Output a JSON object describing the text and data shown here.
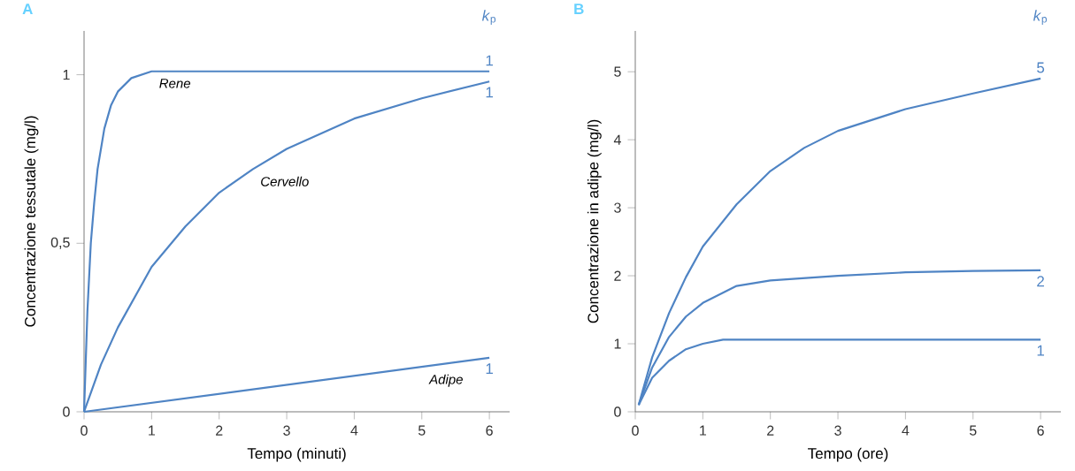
{
  "chart_data": [
    {
      "type": "line",
      "title": "A",
      "xlabel": "Tempo (minuti)",
      "ylabel": "Concentrazione tessutale (mg/l)",
      "legend_title": "*k*$_{p}$",
      "xlim": [
        0,
        6.3
      ],
      "ylim": [
        0,
        1.13
      ],
      "xticks": [
        0,
        1,
        2,
        3,
        4,
        5,
        6
      ],
      "yticks": [
        0,
        {
          "value": 0.5,
          "label": "0,5"
        },
        1
      ],
      "annotations": [
        {
          "text": "Rene",
          "x": 1.0,
          "y": 1.01
        },
        {
          "text": "Cervello",
          "x": 2.5,
          "y": 0.72
        },
        {
          "text": "Adipe",
          "x": 5.0,
          "y": 0.133
        }
      ],
      "series": [
        {
          "name": "1",
          "color": "#4f84c4",
          "x": [
            0,
            0.05,
            0.1,
            0.15,
            0.2,
            0.3,
            0.4,
            0.5,
            0.7,
            1,
            1.5,
            6
          ],
          "values": [
            0,
            0.3,
            0.5,
            0.62,
            0.72,
            0.84,
            0.91,
            0.95,
            0.99,
            1.01,
            1.01,
            1.01
          ]
        },
        {
          "name": "1",
          "color": "#4f84c4",
          "x": [
            0,
            0.25,
            0.5,
            1,
            1.5,
            2,
            2.5,
            3,
            4,
            5,
            6
          ],
          "values": [
            0,
            0.14,
            0.25,
            0.43,
            0.55,
            0.65,
            0.72,
            0.78,
            0.87,
            0.93,
            0.98
          ]
        },
        {
          "name": "1",
          "color": "#4f84c4",
          "x": [
            0,
            6
          ],
          "values": [
            0,
            0.16
          ]
        }
      ]
    },
    {
      "type": "line",
      "title": "B",
      "xlabel": "Tempo (ore)",
      "ylabel": "Concentrazione in adipe (mg/l)",
      "legend_title": "*k*$_{p}$",
      "xlim": [
        0,
        6.3
      ],
      "ylim": [
        0,
        5.6
      ],
      "xticks": [
        0,
        1,
        2,
        3,
        4,
        5,
        6
      ],
      "yticks": [
        0,
        1,
        2,
        3,
        4,
        5
      ],
      "series": [
        {
          "name": "5",
          "color": "#4f84c4",
          "x": [
            0.05,
            0.25,
            0.5,
            0.75,
            1,
            1.5,
            2,
            2.5,
            3,
            4,
            5,
            6
          ],
          "values": [
            0.1,
            0.8,
            1.45,
            1.98,
            2.43,
            3.05,
            3.54,
            3.88,
            4.13,
            4.45,
            4.68,
            4.9
          ]
        },
        {
          "name": "2",
          "color": "#4f84c4",
          "x": [
            0.05,
            0.25,
            0.5,
            0.75,
            1,
            1.5,
            2,
            3,
            4,
            5,
            6
          ],
          "values": [
            0.1,
            0.65,
            1.1,
            1.4,
            1.6,
            1.85,
            1.93,
            2.0,
            2.05,
            2.07,
            2.08
          ]
        },
        {
          "name": "1",
          "color": "#4f84c4",
          "x": [
            0.05,
            0.25,
            0.5,
            0.75,
            1,
            1.3,
            2,
            6
          ],
          "values": [
            0.1,
            0.5,
            0.75,
            0.92,
            1.0,
            1.06,
            1.06,
            1.06
          ]
        }
      ]
    }
  ]
}
